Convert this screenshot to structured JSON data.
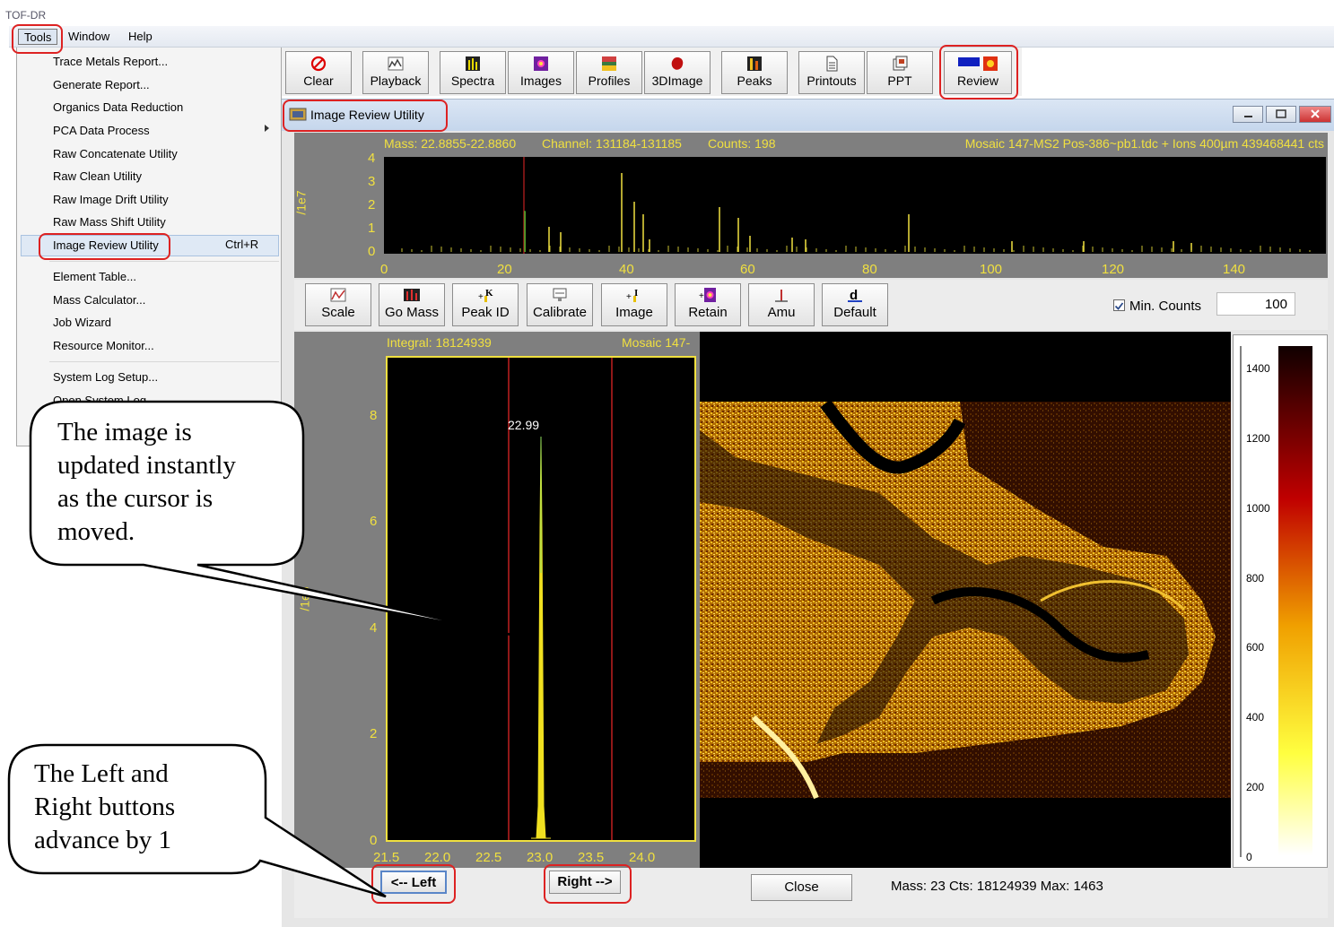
{
  "app": {
    "title": "TOF-DR"
  },
  "menubar": {
    "items": [
      "Tools",
      "Window",
      "Help"
    ]
  },
  "tools_menu": {
    "items": [
      "Trace Metals Report...",
      "Generate Report...",
      "Organics Data Reduction",
      "PCA Data Process",
      "Raw Concatenate Utility",
      "Raw Clean Utility",
      "Raw Image Drift Utility",
      "Raw Mass Shift Utility",
      "Image Review Utility",
      "Element Table...",
      "Mass Calculator...",
      "Job Wizard",
      "Resource Monitor...",
      "System Log Setup...",
      "Open System Log..."
    ],
    "shortcut": "Ctrl+R"
  },
  "toolbar": {
    "buttons": [
      "Clear",
      "Playback",
      "Spectra",
      "Images",
      "Profiles",
      "3DImage",
      "Peaks",
      "Printouts",
      "PPT",
      "Review"
    ]
  },
  "window": {
    "title": "Image Review Utility"
  },
  "spectrum": {
    "mass": "Mass: 22.8855-22.8860",
    "channel": "Channel: 131184-131185",
    "counts": "Counts: 198",
    "file": "Mosaic 147-MS2 Pos-386~pb1.tdc + Ions 400µm 439468441 cts",
    "y_unit": "/1e7",
    "y_ticks": [
      "0",
      "1",
      "2",
      "3",
      "4"
    ],
    "x_ticks": [
      "0",
      "20",
      "40",
      "60",
      "80",
      "100",
      "120",
      "140"
    ]
  },
  "toolbar2": {
    "buttons": [
      "Scale",
      "Go Mass",
      "Peak ID",
      "Calibrate",
      "Image",
      "Retain",
      "Amu",
      "Default"
    ],
    "min_counts_label": "Min. Counts",
    "min_counts_value": "100",
    "min_counts_checked": true
  },
  "peak_plot": {
    "integral": "Integral: 18124939",
    "mosaic": "Mosaic 147-",
    "y_unit": "/1e6",
    "y_ticks": [
      "0",
      "2",
      "4",
      "6",
      "8"
    ],
    "x_ticks": [
      "21.5",
      "22.0",
      "22.5",
      "23.0",
      "23.5",
      "24.0"
    ],
    "peak_label": "22.99"
  },
  "colorbar": {
    "ticks": [
      "0",
      "200",
      "400",
      "600",
      "800",
      "1000",
      "1200",
      "1400"
    ]
  },
  "bottom": {
    "left_label": "<-- Left",
    "right_label": "Right -->",
    "close_label": "Close",
    "status": "Mass: 23  Cts: 18124939  Max: 1463"
  },
  "callouts": {
    "top": [
      "The image is",
      "updated instantly",
      "as the cursor is",
      "moved."
    ],
    "bottom": [
      "The Left and",
      "Right buttons",
      "advance by 1"
    ]
  },
  "colors": {
    "plot_text": "#f0e040",
    "highlight": "#dd2222",
    "plot_bg": "#000000"
  }
}
